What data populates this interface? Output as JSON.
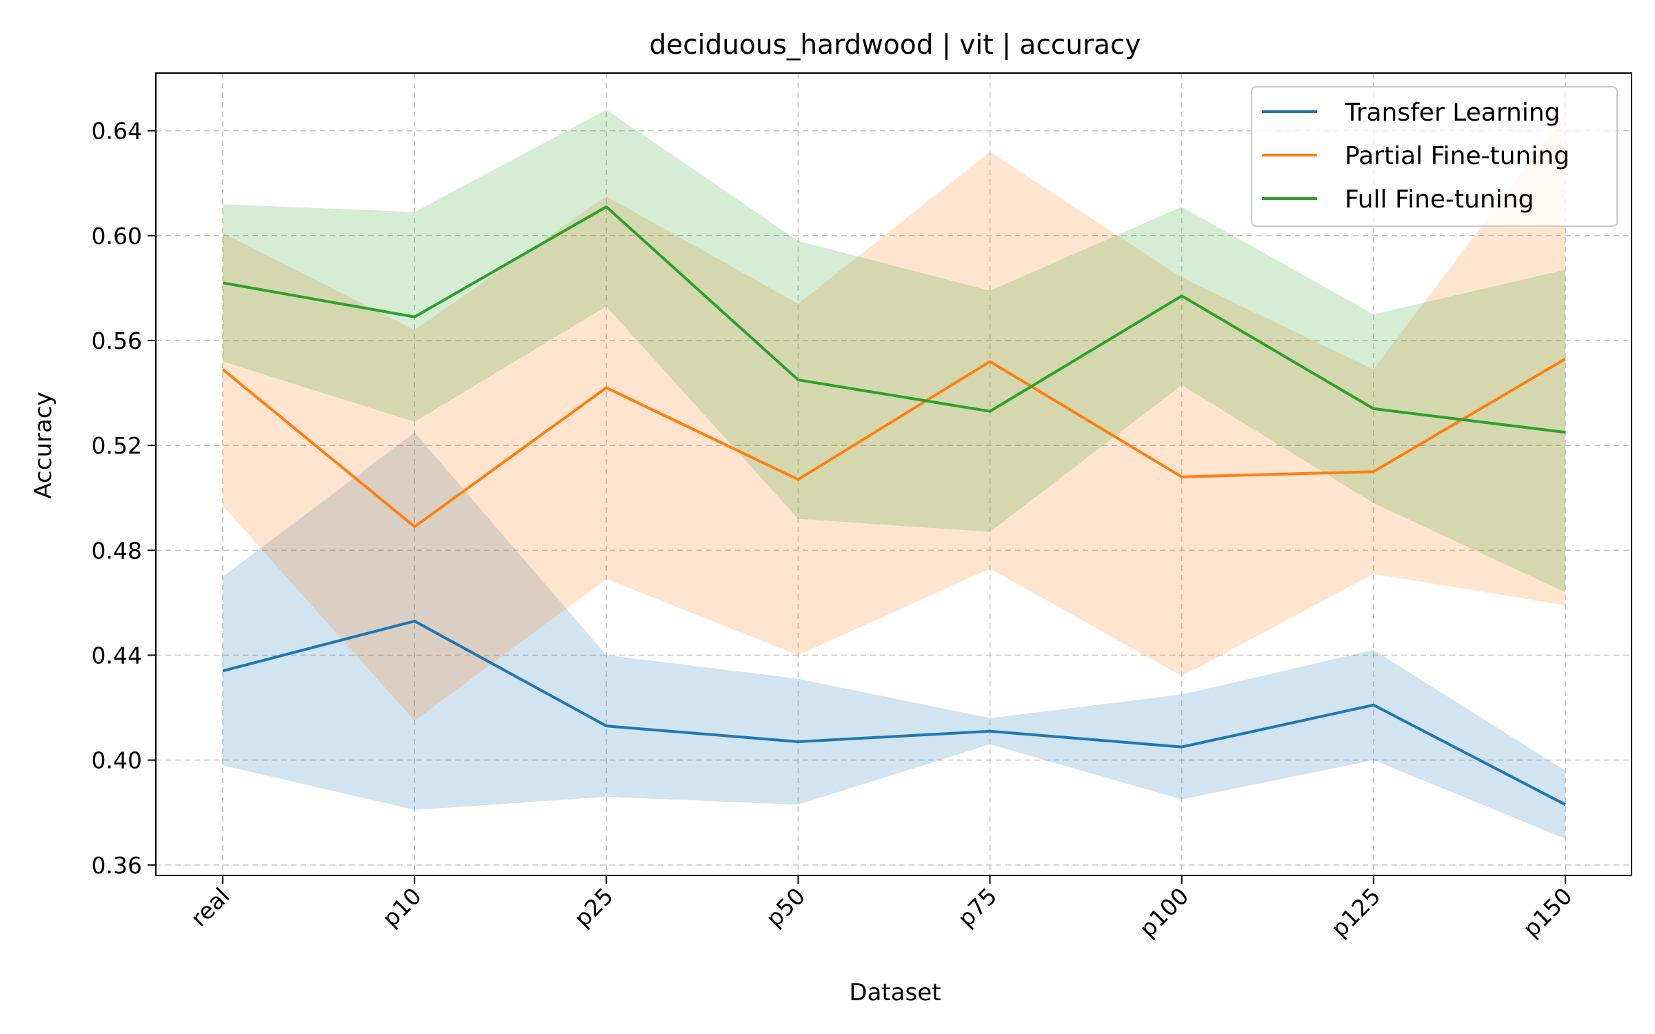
{
  "chart_data": {
    "type": "line",
    "title": "deciduous_hardwood | vit | accuracy",
    "xlabel": "Dataset",
    "ylabel": "Accuracy",
    "categories": [
      "real",
      "p10",
      "p25",
      "p50",
      "p75",
      "p100",
      "p125",
      "p150"
    ],
    "ylim": [
      0.356,
      0.662
    ],
    "yticks": [
      0.36,
      0.4,
      0.44,
      0.48,
      0.52,
      0.56,
      0.6,
      0.64
    ],
    "ytick_labels": [
      "0.36",
      "0.40",
      "0.44",
      "0.48",
      "0.52",
      "0.56",
      "0.60",
      "0.64"
    ],
    "grid": true,
    "legend_position": "top-right",
    "series": [
      {
        "name": "Transfer Learning",
        "color": "#1f77b4",
        "values": [
          0.434,
          0.453,
          0.413,
          0.407,
          0.411,
          0.405,
          0.421,
          0.383
        ],
        "lower": [
          0.398,
          0.381,
          0.386,
          0.383,
          0.406,
          0.385,
          0.4,
          0.37
        ],
        "upper": [
          0.47,
          0.525,
          0.44,
          0.431,
          0.416,
          0.425,
          0.442,
          0.396
        ]
      },
      {
        "name": "Partial Fine-tuning",
        "color": "#ff7f0e",
        "values": [
          0.549,
          0.489,
          0.542,
          0.507,
          0.552,
          0.508,
          0.51,
          0.553
        ],
        "lower": [
          0.497,
          0.415,
          0.469,
          0.44,
          0.473,
          0.432,
          0.471,
          0.459
        ],
        "upper": [
          0.601,
          0.564,
          0.615,
          0.574,
          0.632,
          0.584,
          0.549,
          0.646
        ]
      },
      {
        "name": "Full Fine-tuning",
        "color": "#2ca02c",
        "values": [
          0.582,
          0.569,
          0.611,
          0.545,
          0.533,
          0.577,
          0.534,
          0.525
        ],
        "lower": [
          0.552,
          0.529,
          0.573,
          0.492,
          0.487,
          0.543,
          0.498,
          0.464
        ],
        "upper": [
          0.612,
          0.609,
          0.648,
          0.598,
          0.579,
          0.611,
          0.57,
          0.587
        ]
      }
    ]
  }
}
